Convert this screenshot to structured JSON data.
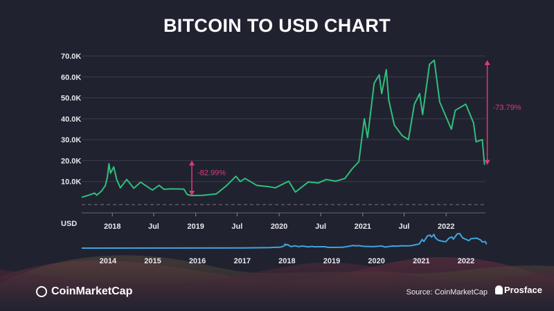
{
  "title": "BITCOIN TO USD CHART",
  "colors": {
    "background": "#212230",
    "price_line": "#2fc07c",
    "navigator_line": "#3ea7e0",
    "annotation": "#e03a78",
    "grid": "#3d3e4d"
  },
  "chart_data": {
    "type": "line",
    "title": "BITCOIN TO USD CHART",
    "ylabel": "USD",
    "ylim": [
      0,
      70000
    ],
    "yticks": [
      {
        "v": 10000,
        "label": "10.0K"
      },
      {
        "v": 20000,
        "label": "20.0K"
      },
      {
        "v": 30000,
        "label": "30.0K"
      },
      {
        "v": 40000,
        "label": "40.0K"
      },
      {
        "v": 50000,
        "label": "50.0K"
      },
      {
        "v": 60000,
        "label": "60.0K"
      },
      {
        "v": 70000,
        "label": "70.0K"
      }
    ],
    "xlim": [
      "2017-08-20",
      "2022-06-22"
    ],
    "xticks": [
      {
        "d": "2018-01-01",
        "label": "2018"
      },
      {
        "d": "2018-07-01",
        "label": "Jul"
      },
      {
        "d": "2019-01-01",
        "label": "2019"
      },
      {
        "d": "2019-07-01",
        "label": "Jul"
      },
      {
        "d": "2020-01-01",
        "label": "2020"
      },
      {
        "d": "2020-07-01",
        "label": "Jul"
      },
      {
        "d": "2021-01-01",
        "label": "2021"
      },
      {
        "d": "2021-07-01",
        "label": "Jul"
      },
      {
        "d": "2022-01-01",
        "label": "2022"
      }
    ],
    "grid": true,
    "series": [
      {
        "points": [
          [
            "2017-08-20",
            2500
          ],
          [
            "2017-09-20",
            3500
          ],
          [
            "2017-10-15",
            4500
          ],
          [
            "2017-10-25",
            3500
          ],
          [
            "2017-11-15",
            5500
          ],
          [
            "2017-12-01",
            8000
          ],
          [
            "2017-12-10",
            12000
          ],
          [
            "2017-12-17",
            18500
          ],
          [
            "2017-12-24",
            14000
          ],
          [
            "2018-01-07",
            17000
          ],
          [
            "2018-01-20",
            11000
          ],
          [
            "2018-02-05",
            7000
          ],
          [
            "2018-03-05",
            11000
          ],
          [
            "2018-04-05",
            6800
          ],
          [
            "2018-05-05",
            9700
          ],
          [
            "2018-06-25",
            5900
          ],
          [
            "2018-07-25",
            8200
          ],
          [
            "2018-08-15",
            6300
          ],
          [
            "2018-09-15",
            6500
          ],
          [
            "2018-11-10",
            6400
          ],
          [
            "2018-11-25",
            3800
          ],
          [
            "2018-12-15",
            3300
          ],
          [
            "2019-02-01",
            3450
          ],
          [
            "2019-04-01",
            4100
          ],
          [
            "2019-05-15",
            8000
          ],
          [
            "2019-06-26",
            12500
          ],
          [
            "2019-07-15",
            10000
          ],
          [
            "2019-08-05",
            11500
          ],
          [
            "2019-09-25",
            8200
          ],
          [
            "2019-11-20",
            7500
          ],
          [
            "2019-12-15",
            7000
          ],
          [
            "2020-02-12",
            10200
          ],
          [
            "2020-03-12",
            5000
          ],
          [
            "2020-05-08",
            9800
          ],
          [
            "2020-06-20",
            9300
          ],
          [
            "2020-07-25",
            11000
          ],
          [
            "2020-09-05",
            10200
          ],
          [
            "2020-10-15",
            11500
          ],
          [
            "2020-11-15",
            16000
          ],
          [
            "2020-12-15",
            19500
          ],
          [
            "2021-01-08",
            40000
          ],
          [
            "2021-01-22",
            31000
          ],
          [
            "2021-02-20",
            57000
          ],
          [
            "2021-03-14",
            61000
          ],
          [
            "2021-03-25",
            52000
          ],
          [
            "2021-04-14",
            63500
          ],
          [
            "2021-04-25",
            49000
          ],
          [
            "2021-05-19",
            37000
          ],
          [
            "2021-06-22",
            32000
          ],
          [
            "2021-07-20",
            30000
          ],
          [
            "2021-08-15",
            47000
          ],
          [
            "2021-09-07",
            52000
          ],
          [
            "2021-09-20",
            42000
          ],
          [
            "2021-10-20",
            66000
          ],
          [
            "2021-11-10",
            68000
          ],
          [
            "2021-12-04",
            48000
          ],
          [
            "2022-01-24",
            35000
          ],
          [
            "2022-02-10",
            44000
          ],
          [
            "2022-03-28",
            47000
          ],
          [
            "2022-05-01",
            38000
          ],
          [
            "2022-05-12",
            29000
          ],
          [
            "2022-06-08",
            30000
          ],
          [
            "2022-06-18",
            18000
          ]
        ]
      }
    ],
    "annotations": [
      {
        "label": "-82.99%",
        "date": "2018-12-15",
        "from": 20000,
        "to": 3300
      },
      {
        "label": "-73.79%",
        "date": "2022-06-30",
        "from": 68000,
        "to": 18000
      }
    ],
    "navigator": {
      "xlim": [
        "2013-06-01",
        "2022-07-01"
      ],
      "xticks": [
        "2014",
        "2015",
        "2016",
        "2017",
        "2018",
        "2019",
        "2020",
        "2021",
        "2022"
      ],
      "early_points": [
        [
          "2013-06-01",
          100
        ],
        [
          "2016-12-31",
          950
        ],
        [
          "2017-05-01",
          1500
        ]
      ]
    }
  },
  "footer": {
    "brand": "CoinMarketCap",
    "source": "Source: CoinMarketCap",
    "watermark": "Prosface"
  }
}
